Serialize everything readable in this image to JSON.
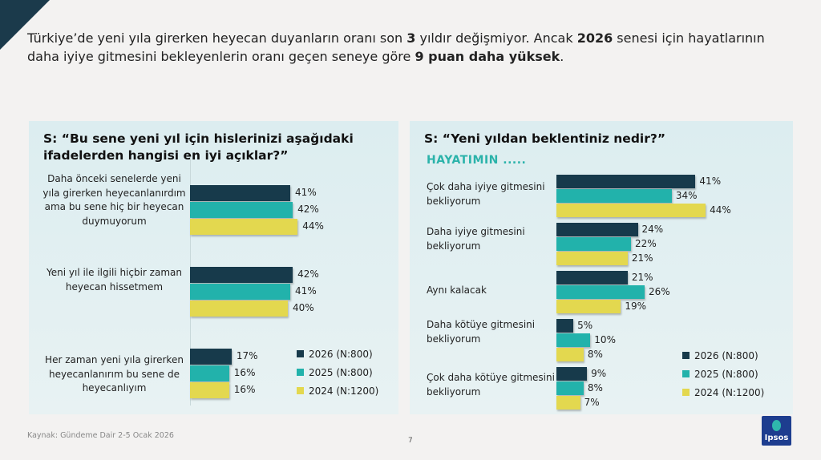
{
  "headline": {
    "parts": [
      "Türkiye’de yeni yıla girerken heyecan duyanların oranı son ",
      "3",
      " yıldır değişmiyor. Ancak ",
      "2026",
      " senesi için hayatlarının daha iyiye gitmesini bekleyenlerin oranı geçen seneye göre ",
      "9 puan daha yüksek",
      "."
    ]
  },
  "colors": {
    "s2026": "#173a4b",
    "s2025": "#22b2ab",
    "s2024": "#e3d84f"
  },
  "chart_data": [
    {
      "type": "bar",
      "orientation": "horizontal",
      "title": "S: “Bu sene yeni yıl için hislerinizi aşağıdaki ifadelerden hangisi en iyi açıklar?”",
      "categories": [
        "Daha önceki senelerde yeni yıla girerken heyecanlanırdım ama bu sene hiç bir heyecan duymuyorum",
        "Yeni yıl ile ilgili hiçbir zaman heyecan hissetmem",
        "Her zaman yeni yıla girerken heyecanlanırım bu sene de heyecanlıyım"
      ],
      "series": [
        {
          "name": "2026 (N:800)",
          "values": [
            41,
            42,
            17
          ]
        },
        {
          "name": "2025 (N:800)",
          "values": [
            42,
            41,
            16
          ]
        },
        {
          "name": "2024 (N:1200)",
          "values": [
            44,
            40,
            16
          ]
        }
      ],
      "unit": "%",
      "legend": "bottom-right"
    },
    {
      "type": "bar",
      "orientation": "horizontal",
      "title": "S: “Yeni yıldan beklentiniz nedir?”",
      "subtitle": "HAYATIMIN .....",
      "categories": [
        "Çok daha iyiye gitmesini bekliyorum",
        "Daha iyiye gitmesini bekliyorum",
        "Aynı kalacak",
        "Daha kötüye gitmesini bekliyorum",
        "Çok daha kötüye gitmesini bekliyorum"
      ],
      "series": [
        {
          "name": "2026 (N:800)",
          "values": [
            41,
            24,
            21,
            5,
            9
          ]
        },
        {
          "name": "2025 (N:800)",
          "values": [
            34,
            22,
            26,
            10,
            8
          ]
        },
        {
          "name": "2024 (N:1200)",
          "values": [
            44,
            21,
            19,
            8,
            7
          ]
        }
      ],
      "unit": "%",
      "legend": "bottom-right"
    }
  ],
  "footer": {
    "source": "Kaynak: Gündeme Dair 2-5 Ocak 2026",
    "page": "7",
    "logo": "Ipsos"
  }
}
